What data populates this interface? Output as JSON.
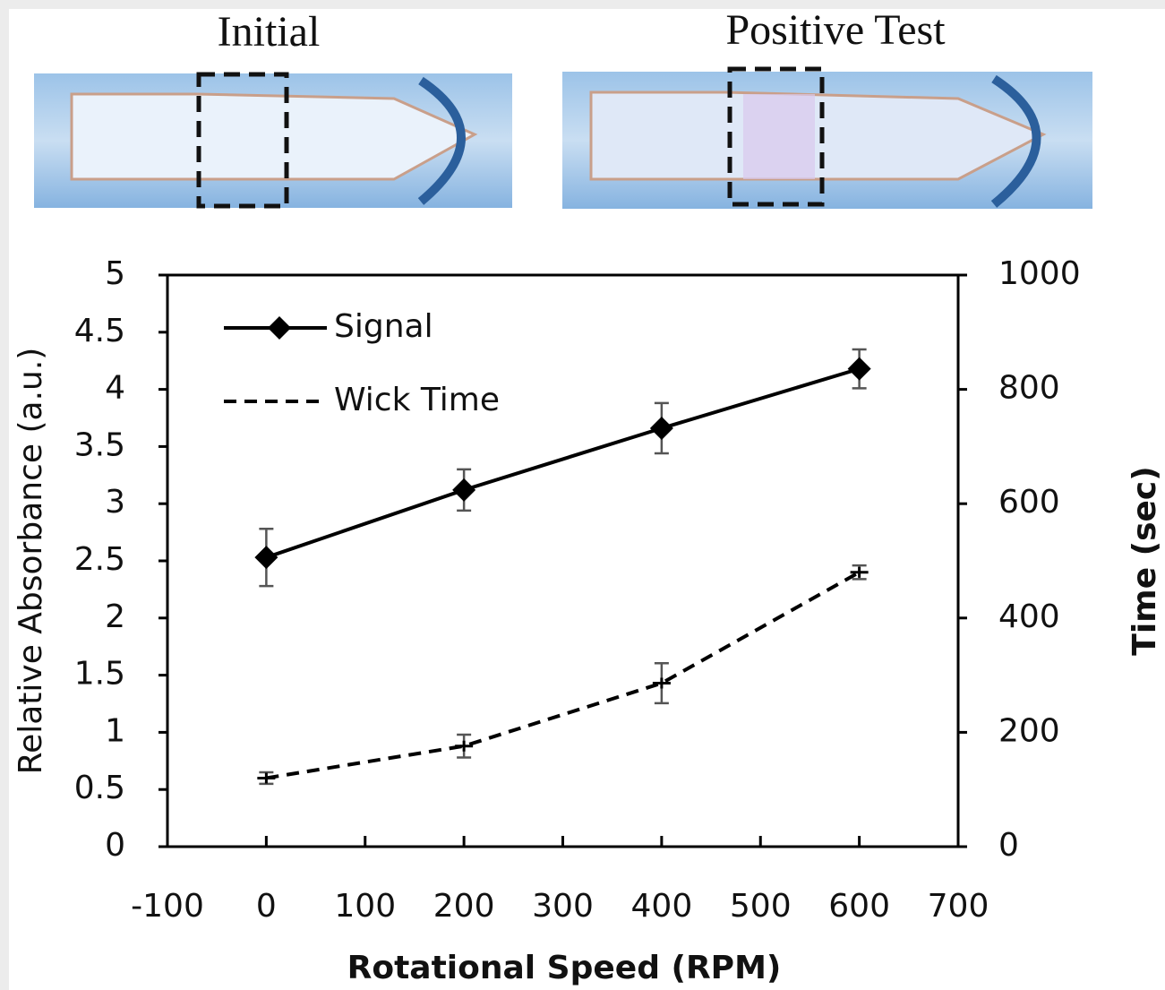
{
  "images": [
    {
      "label": "Initial"
    },
    {
      "label": "Positive Test"
    }
  ],
  "chart_data": {
    "type": "line",
    "xlabel": "Rotational Speed (RPM)",
    "ylabel": "Relative Absorbance (a.u.)",
    "y2label": "Time (sec)",
    "x": [
      0,
      200,
      400,
      600
    ],
    "series": [
      {
        "name": "Signal",
        "color": "#000000",
        "linestyle": "solid",
        "marker": "diamond",
        "axis": "y",
        "values": [
          2.53,
          3.12,
          3.66,
          4.18
        ],
        "errors": [
          0.25,
          0.18,
          0.22,
          0.17
        ]
      },
      {
        "name": "Wick Time",
        "color": "#000000",
        "linestyle": "dashed",
        "marker": "plus",
        "axis": "y2",
        "values": [
          120,
          176,
          286,
          480
        ],
        "errors": [
          10,
          20,
          35,
          12
        ]
      }
    ],
    "xlim": [
      -100,
      700
    ],
    "xticks": [
      -100,
      0,
      100,
      200,
      300,
      400,
      500,
      600,
      700
    ],
    "ylim": [
      0,
      5
    ],
    "yticks": [
      0,
      0.5,
      1,
      1.5,
      2,
      2.5,
      3,
      3.5,
      4,
      4.5,
      5
    ],
    "y2lim": [
      0,
      1000
    ],
    "y2ticks": [
      0,
      200,
      400,
      600,
      800,
      1000
    ],
    "legend": "upper left",
    "grid": false
  }
}
